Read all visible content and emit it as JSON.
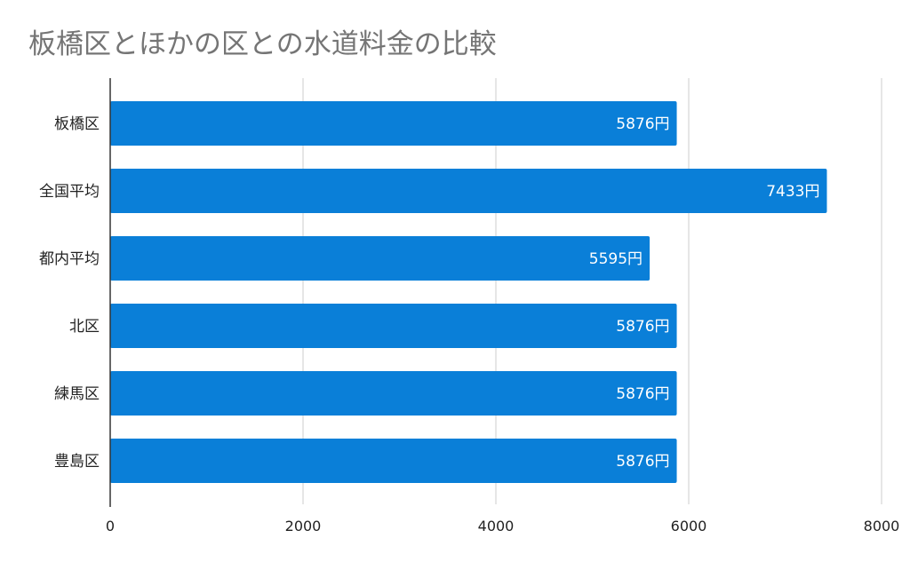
{
  "chart_data": {
    "type": "bar",
    "orientation": "horizontal",
    "title": "板橋区とほかの区との水道料金の比較",
    "categories": [
      "板橋区",
      "全国平均",
      "都内平均",
      "北区",
      "練馬区",
      "豊島区"
    ],
    "values": [
      5876,
      7433,
      5595,
      5876,
      5876,
      5876
    ],
    "data_labels": [
      "5876円",
      "7433円",
      "5595円",
      "5876円",
      "5876円",
      "5876円"
    ],
    "xlim": [
      0,
      8000
    ],
    "xticks": [
      0,
      2000,
      4000,
      6000,
      8000
    ],
    "xtick_labels": [
      "0",
      "2000",
      "4000",
      "6000",
      "8000"
    ],
    "xlabel": "",
    "ylabel": "",
    "grid": true,
    "bar_color": "#0a7fd8"
  }
}
